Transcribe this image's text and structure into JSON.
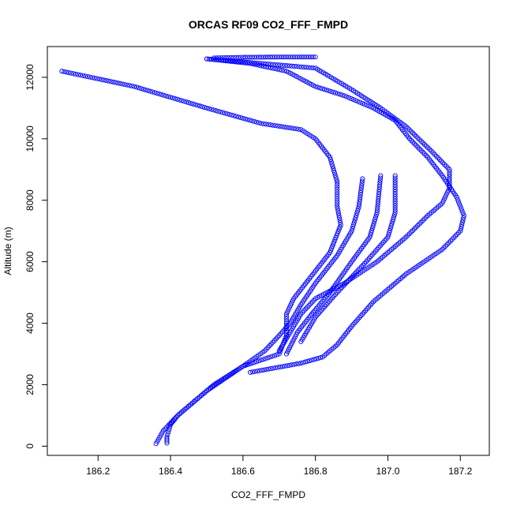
{
  "chart_data": {
    "type": "scatter",
    "title": "ORCAS RF09 CO2_FFF_FMPD",
    "xlabel": "CO2_FFF_FMPD",
    "ylabel": "Altitude (m)",
    "xlim": [
      186.06,
      187.28
    ],
    "ylim": [
      -300,
      13000
    ],
    "xticks": [
      186.2,
      186.4,
      186.6,
      186.8,
      187.0,
      187.2
    ],
    "xtick_labels": [
      "186.2",
      "186.4",
      "186.6",
      "186.8",
      "187.0",
      "187.2"
    ],
    "yticks": [
      0,
      2000,
      4000,
      6000,
      8000,
      10000,
      12000
    ],
    "ytick_labels": [
      "0",
      "2000",
      "4000",
      "6000",
      "8000",
      "10000",
      "12000"
    ],
    "grid": false,
    "legend": "none",
    "marker": "open-circle",
    "color": "#0000ff",
    "series": [
      {
        "x": [
          186.1,
          186.3,
          186.5,
          186.65,
          186.76,
          186.8,
          186.84,
          186.86,
          186.86,
          186.87,
          186.84,
          186.78,
          186.74,
          186.72,
          186.72,
          186.7,
          186.6,
          186.5,
          186.42,
          186.38,
          186.36
        ],
        "y": [
          12200,
          11700,
          11000,
          10500,
          10300,
          10000,
          9400,
          8600,
          7800,
          7200,
          6300,
          5400,
          4800,
          4300,
          3600,
          3000,
          2600,
          1800,
          1000,
          500,
          80
        ]
      },
      {
        "x": [
          186.93,
          186.92,
          186.9,
          186.86,
          186.8,
          186.76,
          186.73,
          186.7,
          186.66,
          186.6,
          186.52,
          186.46,
          186.42,
          186.4,
          186.39,
          186.39
        ],
        "y": [
          8700,
          7800,
          7000,
          6200,
          5300,
          4600,
          4000,
          3600,
          3100,
          2600,
          2000,
          1400,
          1000,
          700,
          300,
          100
        ]
      },
      {
        "x": [
          186.98,
          186.97,
          186.95,
          186.9,
          186.84,
          186.79,
          186.75,
          186.72
        ],
        "y": [
          8800,
          7600,
          6800,
          6000,
          5000,
          4300,
          3700,
          3000
        ]
      },
      {
        "x": [
          187.02,
          187.02,
          187.0,
          186.94,
          186.86,
          186.8,
          186.76
        ],
        "y": [
          8800,
          7600,
          6800,
          6000,
          5000,
          4200,
          3400
        ]
      },
      {
        "x": [
          186.5,
          186.8,
          186.9,
          186.98,
          187.05,
          187.12,
          187.17,
          187.17,
          187.15,
          187.11,
          187.05,
          186.97,
          186.88,
          186.8,
          186.76,
          186.73,
          186.7
        ],
        "y": [
          12600,
          12300,
          11600,
          11000,
          10400,
          9600,
          9000,
          8400,
          7900,
          7500,
          6800,
          6000,
          5300,
          4800,
          4300,
          3700,
          3100
        ]
      },
      {
        "x": [
          186.5,
          186.62,
          186.72,
          186.8,
          186.88,
          186.96,
          187.02,
          187.06,
          187.11,
          187.15,
          187.19,
          187.21,
          187.2,
          187.15,
          187.05,
          186.96,
          186.9,
          186.86,
          186.82,
          186.76,
          186.62
        ],
        "y": [
          12600,
          12450,
          12200,
          11700,
          11400,
          11000,
          10600,
          10000,
          9400,
          8800,
          8100,
          7500,
          7000,
          6400,
          5600,
          4700,
          3900,
          3300,
          2900,
          2700,
          2400
        ]
      },
      {
        "x": [
          186.52,
          186.56,
          186.6,
          186.65,
          186.7,
          186.75,
          186.8
        ],
        "y": [
          12630,
          12640,
          12650,
          12655,
          12660,
          12660,
          12660
        ]
      }
    ]
  }
}
